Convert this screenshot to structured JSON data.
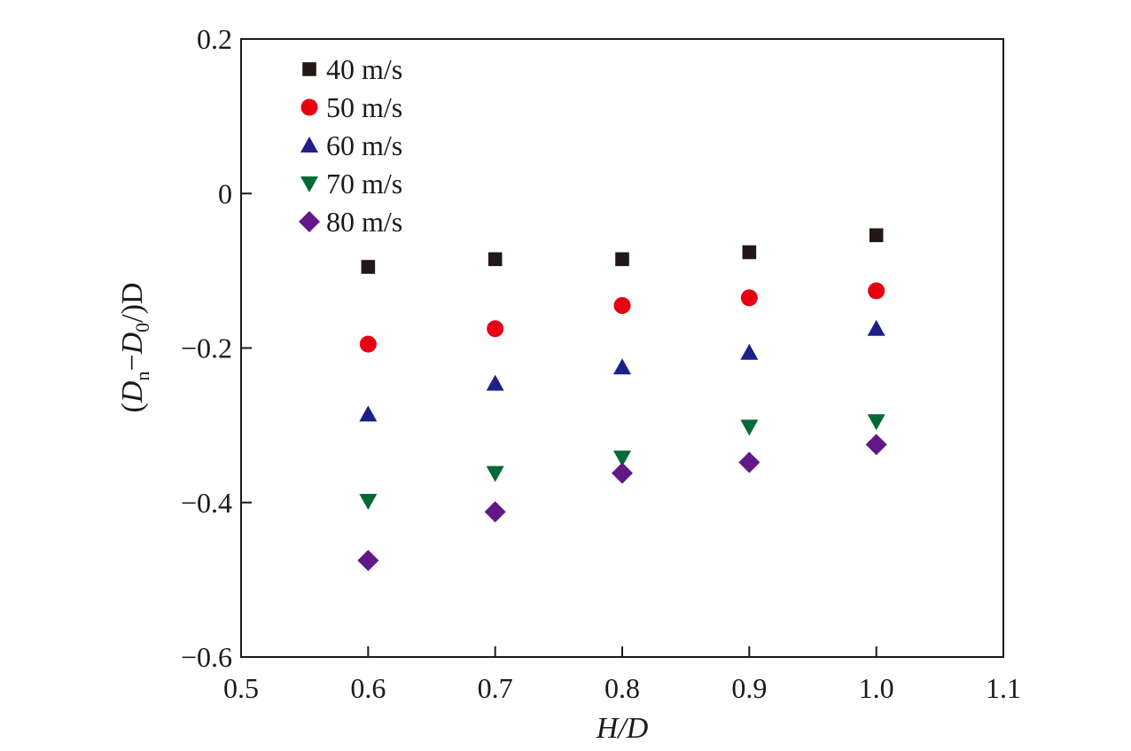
{
  "chart_data": {
    "type": "scatter",
    "xlabel": {
      "main": "H/D"
    },
    "ylabel": {
      "open": "(",
      "d1": "D",
      "sub1": "n",
      "minus": "−",
      "d2": "D",
      "sub2": "0",
      "close": "/)D"
    },
    "xlim": [
      0.5,
      1.1
    ],
    "ylim": [
      -0.6,
      0.2
    ],
    "x_ticks": [
      "0.5",
      "0.6",
      "0.7",
      "0.8",
      "0.9",
      "1.0",
      "1.1"
    ],
    "y_ticks": [
      "0.2",
      "0",
      "−0.2",
      "−0.4",
      "−0.6"
    ],
    "x_tick_values": [
      0.5,
      0.6,
      0.7,
      0.8,
      0.9,
      1.0,
      1.1
    ],
    "y_tick_values": [
      0.2,
      0,
      -0.2,
      -0.4,
      -0.6
    ],
    "grid": false,
    "legend_position": "top-left",
    "x": [
      0.6,
      0.7,
      0.8,
      0.9,
      1.0
    ],
    "series": [
      {
        "name": "40 m/s",
        "marker": "square",
        "color": "#231815",
        "values": [
          -0.095,
          -0.085,
          -0.085,
          -0.076,
          -0.054
        ]
      },
      {
        "name": "50 m/s",
        "marker": "circle",
        "color": "#e60012",
        "values": [
          -0.195,
          -0.175,
          -0.145,
          -0.135,
          -0.126
        ]
      },
      {
        "name": "60 m/s",
        "marker": "triangle-up",
        "color": "#1d2088",
        "values": [
          -0.286,
          -0.246,
          -0.225,
          -0.206,
          -0.175
        ]
      },
      {
        "name": "70 m/s",
        "marker": "triangle-down",
        "color": "#006934",
        "values": [
          -0.398,
          -0.362,
          -0.342,
          -0.302,
          -0.295
        ]
      },
      {
        "name": "80 m/s",
        "marker": "diamond",
        "color": "#601986",
        "values": [
          -0.475,
          -0.412,
          -0.362,
          -0.348,
          -0.325
        ]
      }
    ]
  }
}
